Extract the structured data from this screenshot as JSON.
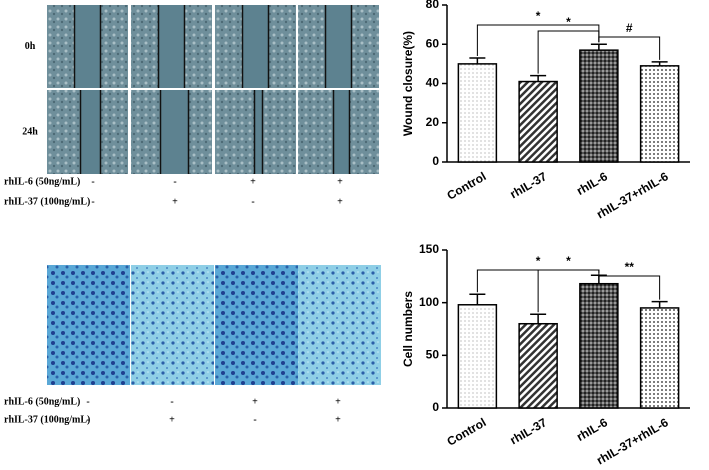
{
  "panels": {
    "wound": {
      "rows": [
        "0h",
        "24h"
      ],
      "treatments": [
        {
          "label": "rhIL-6 (50ng/mL)",
          "signs": [
            "-",
            "-",
            "+",
            "+"
          ]
        },
        {
          "label": "rhIL-37 (100ng/mL)",
          "signs": [
            "-",
            "+",
            "-",
            "+"
          ]
        }
      ]
    },
    "transwell": {
      "treatments": [
        {
          "label": "rhIL-6 (50ng/mL)",
          "signs": [
            "-",
            "-",
            "+",
            "+"
          ]
        },
        {
          "label": "rhIL-37 (100ng/mL)",
          "signs": [
            "-",
            "+",
            "-",
            "+"
          ]
        }
      ]
    }
  },
  "chart_data": [
    {
      "type": "bar",
      "ylabel": "Wound closure(%)",
      "categories": [
        "Control",
        "rhIL-37",
        "rhIL-6",
        "rhIL-37+rhIL-6"
      ],
      "values": [
        50,
        41,
        57,
        49
      ],
      "errors": [
        3,
        3,
        3,
        2
      ],
      "ylim": [
        0,
        80
      ],
      "yticks": [
        0,
        20,
        40,
        60,
        80
      ],
      "annotations": [
        "*",
        "*",
        "#"
      ]
    },
    {
      "type": "bar",
      "ylabel": "Cell numbers",
      "categories": [
        "Control",
        "rhIL-37",
        "rhIL-6",
        "rhIL-37+rhIL-6"
      ],
      "values": [
        98,
        80,
        118,
        95
      ],
      "errors": [
        10,
        9,
        8,
        6
      ],
      "ylim": [
        0,
        150
      ],
      "yticks": [
        0,
        50,
        100,
        150
      ],
      "annotations": [
        "*",
        "*",
        "**"
      ]
    }
  ]
}
